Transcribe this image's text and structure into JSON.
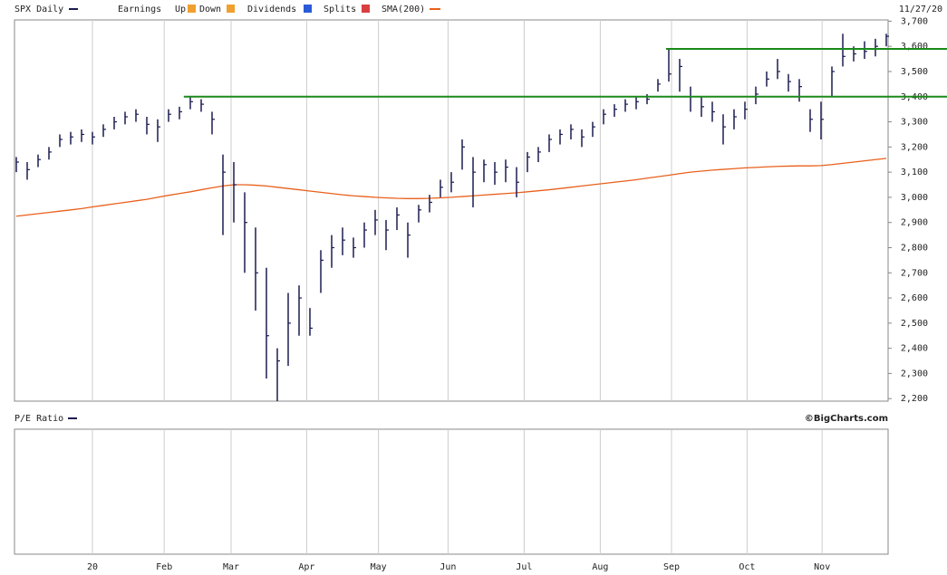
{
  "chart_data": {
    "type": "ohlc",
    "title": "SPX Daily",
    "date_label": "11/27/20",
    "color": "#1c1c50",
    "legend": [
      "Earnings",
      "Up",
      "Down",
      "Dividends",
      "Splits"
    ],
    "high": [
      3160,
      3140,
      3170,
      3200,
      3250,
      3260,
      3270,
      3260,
      3290,
      3320,
      3340,
      3350,
      3320,
      3310,
      3350,
      3360,
      3400,
      3390,
      3340,
      3170,
      3140,
      3020,
      2880,
      2720,
      2400,
      2620,
      2650,
      2560,
      2790,
      2850,
      2880,
      2840,
      2900,
      2950,
      2910,
      2960,
      2900,
      2970,
      3010,
      3070,
      3100,
      3230,
      3160,
      3150,
      3140,
      3150,
      3120,
      3180,
      3200,
      3250,
      3270,
      3290,
      3270,
      3300,
      3350,
      3370,
      3390,
      3400,
      3410,
      3470,
      3590,
      3550,
      3440,
      3400,
      3380,
      3330,
      3350,
      3380,
      3440,
      3500,
      3550,
      3490,
      3470,
      3350,
      3380,
      3520,
      3650,
      3600,
      3620,
      3630,
      3650
    ],
    "low": [
      3100,
      3070,
      3120,
      3150,
      3200,
      3210,
      3220,
      3210,
      3240,
      3270,
      3290,
      3300,
      3250,
      3220,
      3300,
      3310,
      3350,
      3340,
      3250,
      2850,
      2900,
      2700,
      2550,
      2280,
      2190,
      2330,
      2450,
      2450,
      2620,
      2720,
      2770,
      2760,
      2800,
      2850,
      2790,
      2870,
      2760,
      2900,
      2940,
      3000,
      3020,
      3110,
      2960,
      3060,
      3050,
      3060,
      3000,
      3100,
      3140,
      3180,
      3210,
      3230,
      3200,
      3240,
      3290,
      3320,
      3340,
      3350,
      3370,
      3420,
      3460,
      3420,
      3340,
      3320,
      3300,
      3210,
      3270,
      3310,
      3370,
      3440,
      3470,
      3420,
      3380,
      3260,
      3230,
      3400,
      3520,
      3540,
      3550,
      3560,
      3600
    ],
    "close": [
      3140,
      3110,
      3150,
      3180,
      3230,
      3240,
      3250,
      3240,
      3270,
      3300,
      3320,
      3330,
      3290,
      3280,
      3330,
      3340,
      3380,
      3370,
      3310,
      3100,
      3050,
      2900,
      2700,
      2450,
      2350,
      2500,
      2600,
      2480,
      2750,
      2800,
      2830,
      2800,
      2870,
      2910,
      2870,
      2930,
      2850,
      2950,
      2980,
      3040,
      3060,
      3200,
      3100,
      3130,
      3100,
      3120,
      3060,
      3160,
      3180,
      3230,
      3250,
      3270,
      3240,
      3280,
      3330,
      3350,
      3370,
      3380,
      3390,
      3450,
      3490,
      3520,
      3400,
      3360,
      3340,
      3280,
      3320,
      3350,
      3410,
      3470,
      3500,
      3460,
      3440,
      3310,
      3310,
      3500,
      3560,
      3570,
      3580,
      3600,
      3640
    ],
    "sma": {
      "name": "SMA(200)",
      "color": "#e8601c",
      "values": [
        2925,
        2930,
        2935,
        2940,
        2945,
        2950,
        2955,
        2962,
        2968,
        2974,
        2980,
        2986,
        2992,
        3000,
        3008,
        3015,
        3022,
        3030,
        3038,
        3045,
        3050,
        3050,
        3048,
        3045,
        3040,
        3035,
        3030,
        3025,
        3020,
        3015,
        3010,
        3006,
        3003,
        3000,
        2998,
        2996,
        2995,
        2995,
        2996,
        2998,
        3000,
        3003,
        3006,
        3009,
        3012,
        3015,
        3018,
        3022,
        3026,
        3030,
        3035,
        3040,
        3045,
        3050,
        3055,
        3060,
        3065,
        3070,
        3076,
        3082,
        3088,
        3094,
        3100,
        3104,
        3108,
        3111,
        3114,
        3117,
        3119,
        3121,
        3123,
        3124,
        3125,
        3125,
        3126,
        3130,
        3135,
        3140,
        3145,
        3150,
        3155
      ]
    },
    "levels": [
      {
        "value": 3400,
        "from": 15.4
      },
      {
        "value": 3590,
        "from": 59.75
      }
    ],
    "level_color": "#1a8a1a",
    "ylim": [
      2190,
      3705
    ],
    "yticks": [
      {
        "value": 2200,
        "label": "2,200"
      },
      {
        "value": 2300,
        "label": "2,300"
      },
      {
        "value": 2400,
        "label": "2,400"
      },
      {
        "value": 2500,
        "label": "2,500"
      },
      {
        "value": 2600,
        "label": "2,600"
      },
      {
        "value": 2700,
        "label": "2,700"
      },
      {
        "value": 2800,
        "label": "2,800"
      },
      {
        "value": 2900,
        "label": "2,900"
      },
      {
        "value": 3000,
        "label": "3,000"
      },
      {
        "value": 3100,
        "label": "3,100"
      },
      {
        "value": 3200,
        "label": "3,200"
      },
      {
        "value": 3300,
        "label": "3,300"
      },
      {
        "value": 3400,
        "label": "3,400"
      },
      {
        "value": 3500,
        "label": "3,500"
      },
      {
        "value": 3600,
        "label": "3,600"
      },
      {
        "value": 3700,
        "label": "3,700"
      }
    ],
    "xticks": [
      {
        "value": 7,
        "label": "20"
      },
      {
        "value": 13.6,
        "label": "Feb"
      },
      {
        "value": 19.75,
        "label": "Mar"
      },
      {
        "value": 26.7,
        "label": "Apr"
      },
      {
        "value": 33.3,
        "label": "May"
      },
      {
        "value": 39.7,
        "label": "Jun"
      },
      {
        "value": 46.7,
        "label": "Jul"
      },
      {
        "value": 53.7,
        "label": "Aug"
      },
      {
        "value": 60.25,
        "label": "Sep"
      },
      {
        "value": 67.2,
        "label": "Oct"
      },
      {
        "value": 74.1,
        "label": "Nov"
      }
    ],
    "lower_panel": {
      "title": "P/E Ratio"
    },
    "credit": "©BigCharts.com"
  }
}
